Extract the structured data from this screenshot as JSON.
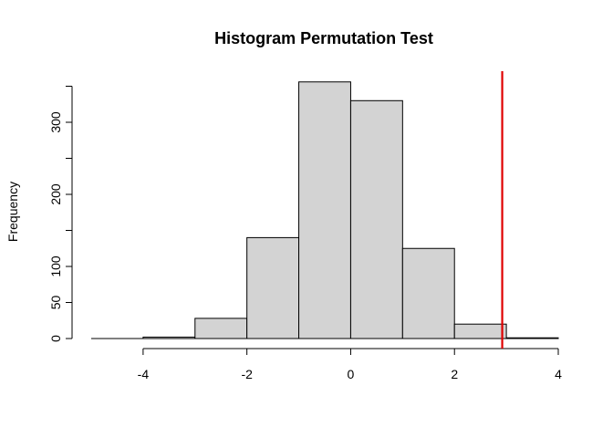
{
  "chart_data": {
    "type": "bar",
    "title": "Histogram Permutation Test",
    "xlabel": "",
    "ylabel": "Frequency",
    "xlim": [
      -5,
      4
    ],
    "ylim": [
      0,
      355
    ],
    "x_ticks": [
      -4,
      -2,
      0,
      2,
      4
    ],
    "x_tick_labels": [
      "-4",
      "-2",
      "0",
      "2",
      "4"
    ],
    "y_ticks": [
      0,
      50,
      100,
      200,
      300
    ],
    "y_tick_labels": [
      "0",
      "50",
      "100",
      "200",
      "300"
    ],
    "bins": [
      {
        "x0": -5,
        "x1": -4,
        "count": 0
      },
      {
        "x0": -4,
        "x1": -3,
        "count": 2
      },
      {
        "x0": -3,
        "x1": -2,
        "count": 28
      },
      {
        "x0": -2,
        "x1": -1,
        "count": 140
      },
      {
        "x0": -1,
        "x1": 0,
        "count": 356
      },
      {
        "x0": 0,
        "x1": 1,
        "count": 330
      },
      {
        "x0": 1,
        "x1": 2,
        "count": 125
      },
      {
        "x0": 2,
        "x1": 3,
        "count": 20
      },
      {
        "x0": 3,
        "x1": 4,
        "count": 1
      }
    ],
    "reference_line": {
      "x": 2.92,
      "color": "#e00000"
    },
    "bar_fill": "#d3d3d3",
    "grid": false,
    "legend": "none"
  }
}
